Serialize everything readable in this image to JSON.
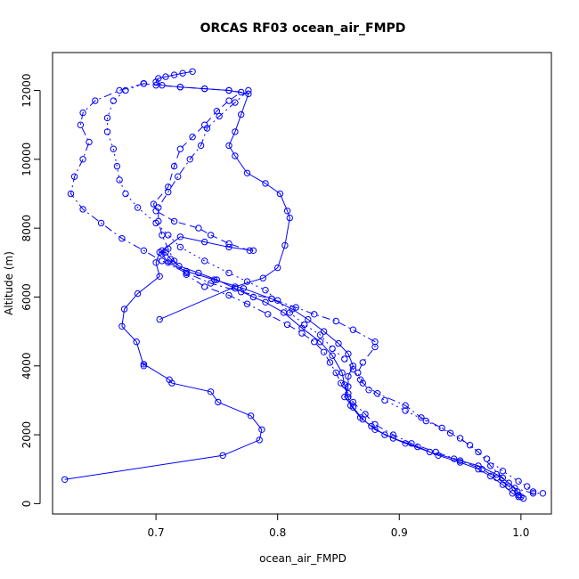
{
  "chart_data": {
    "type": "line",
    "title": "ORCAS RF03 ocean_air_FMPD",
    "xlabel": "ocean_air_FMPD",
    "ylabel": "Altitude (m)",
    "xlim": [
      0.615,
      1.025
    ],
    "ylim": [
      -300,
      13100
    ],
    "xticks": [
      0.7,
      0.8,
      0.9,
      1.0
    ],
    "xtick_labels": [
      "0.7",
      "0.8",
      "0.9",
      "1.0"
    ],
    "yticks": [
      0,
      2000,
      4000,
      6000,
      8000,
      10000,
      12000
    ],
    "ytick_labels": [
      "0",
      "2000",
      "4000",
      "6000",
      "8000",
      "10000",
      "12000"
    ],
    "grid": false,
    "legend": "none",
    "color": "#0000ff",
    "marker": "open-circle",
    "series": [
      {
        "line_style": "solid",
        "points": [
          [
            0.625,
            700
          ],
          [
            0.755,
            1400
          ],
          [
            0.785,
            1850
          ],
          [
            0.787,
            2150
          ],
          [
            0.778,
            2550
          ],
          [
            0.751,
            2950
          ],
          [
            0.745,
            3250
          ],
          [
            0.713,
            3500
          ],
          [
            0.711,
            3600
          ],
          [
            0.69,
            4050
          ],
          [
            0.69,
            4000
          ],
          [
            0.684,
            4700
          ],
          [
            0.672,
            5150
          ],
          [
            0.674,
            5650
          ],
          [
            0.685,
            6100
          ],
          [
            0.703,
            6600
          ],
          [
            0.7,
            7000
          ],
          [
            0.703,
            7300
          ],
          [
            0.708,
            7300
          ],
          [
            0.712,
            7100
          ],
          [
            0.719,
            6900
          ],
          [
            0.735,
            6700
          ],
          [
            0.75,
            6500
          ],
          [
            0.765,
            6250
          ],
          [
            0.78,
            6000
          ],
          [
            0.79,
            5850
          ],
          [
            0.805,
            5550
          ],
          [
            0.82,
            5100
          ],
          [
            0.835,
            4700
          ],
          [
            0.845,
            4300
          ],
          [
            0.853,
            3800
          ],
          [
            0.855,
            3450
          ],
          [
            0.858,
            3100
          ],
          [
            0.86,
            2850
          ],
          [
            0.868,
            2500
          ],
          [
            0.877,
            2250
          ],
          [
            0.888,
            2000
          ],
          [
            0.905,
            1750
          ],
          [
            0.925,
            1500
          ],
          [
            0.945,
            1300
          ],
          [
            0.965,
            1100
          ],
          [
            0.98,
            850
          ],
          [
            0.99,
            600
          ],
          [
            0.997,
            350
          ],
          [
            1.0,
            200
          ]
        ]
      },
      {
        "line_style": "solid",
        "points": [
          [
            0.703,
            5350
          ],
          [
            0.765,
            6300
          ],
          [
            0.788,
            6550
          ],
          [
            0.8,
            6850
          ],
          [
            0.806,
            7500
          ],
          [
            0.81,
            8300
          ],
          [
            0.808,
            8500
          ],
          [
            0.802,
            9000
          ],
          [
            0.79,
            9300
          ],
          [
            0.775,
            9600
          ],
          [
            0.765,
            10100
          ],
          [
            0.76,
            10400
          ],
          [
            0.765,
            10800
          ],
          [
            0.77,
            11300
          ],
          [
            0.776,
            11900
          ],
          [
            0.76,
            12000
          ],
          [
            0.74,
            12050
          ],
          [
            0.72,
            12100
          ],
          [
            0.705,
            12150
          ],
          [
            0.7,
            12250
          ],
          [
            0.702,
            12350
          ],
          [
            0.708,
            12400
          ],
          [
            0.715,
            12450
          ],
          [
            0.722,
            12500
          ],
          [
            0.73,
            12550
          ]
        ]
      },
      {
        "line_style": "dashed",
        "points": [
          [
            0.777,
            7350
          ],
          [
            0.76,
            7550
          ],
          [
            0.745,
            7800
          ],
          [
            0.735,
            8000
          ],
          [
            0.715,
            8200
          ],
          [
            0.7,
            8500
          ],
          [
            0.698,
            8700
          ],
          [
            0.71,
            9200
          ],
          [
            0.715,
            9800
          ],
          [
            0.72,
            10300
          ],
          [
            0.73,
            10650
          ],
          [
            0.74,
            11000
          ],
          [
            0.75,
            11400
          ],
          [
            0.76,
            11700
          ],
          [
            0.77,
            11950
          ],
          [
            0.76,
            12000
          ],
          [
            0.74,
            12050
          ],
          [
            0.72,
            12100
          ],
          [
            0.7,
            12150
          ],
          [
            0.69,
            12200
          ]
        ]
      },
      {
        "line_style": "dash-dot",
        "points": [
          [
            0.69,
            12200
          ],
          [
            0.67,
            12000
          ],
          [
            0.65,
            11700
          ],
          [
            0.64,
            11350
          ],
          [
            0.638,
            11000
          ],
          [
            0.645,
            10500
          ],
          [
            0.64,
            10000
          ],
          [
            0.633,
            9500
          ],
          [
            0.63,
            9000
          ],
          [
            0.64,
            8550
          ],
          [
            0.655,
            8150
          ],
          [
            0.672,
            7700
          ],
          [
            0.69,
            7350
          ],
          [
            0.705,
            7050
          ],
          [
            0.725,
            6700
          ],
          [
            0.745,
            6400
          ],
          [
            0.77,
            6150
          ],
          [
            0.795,
            5950
          ],
          [
            0.815,
            5700
          ],
          [
            0.83,
            5500
          ],
          [
            0.848,
            5300
          ],
          [
            0.862,
            5050
          ],
          [
            0.88,
            4700
          ],
          [
            0.88,
            4550
          ],
          [
            0.87,
            4100
          ],
          [
            0.866,
            3800
          ],
          [
            0.87,
            3500
          ],
          [
            0.882,
            3200
          ],
          [
            0.905,
            2850
          ],
          [
            0.918,
            2500
          ],
          [
            0.935,
            2200
          ],
          [
            0.95,
            1900
          ],
          [
            0.965,
            1500
          ],
          [
            0.975,
            1100
          ],
          [
            0.985,
            750
          ],
          [
            0.995,
            450
          ],
          [
            1.01,
            300
          ],
          [
            1.018,
            300
          ]
        ]
      },
      {
        "line_style": "dotted",
        "points": [
          [
            0.69,
            12200
          ],
          [
            0.675,
            12000
          ],
          [
            0.665,
            11700
          ],
          [
            0.66,
            11200
          ],
          [
            0.66,
            10800
          ],
          [
            0.665,
            10300
          ],
          [
            0.668,
            9800
          ],
          [
            0.67,
            9400
          ],
          [
            0.675,
            9000
          ],
          [
            0.685,
            8600
          ],
          [
            0.7,
            8150
          ],
          [
            0.71,
            7800
          ],
          [
            0.72,
            7450
          ],
          [
            0.74,
            7050
          ],
          [
            0.76,
            6700
          ],
          [
            0.775,
            6450
          ],
          [
            0.79,
            6200
          ],
          [
            0.8,
            5900
          ],
          [
            0.81,
            5550
          ],
          [
            0.822,
            5200
          ],
          [
            0.835,
            4900
          ],
          [
            0.845,
            4500
          ],
          [
            0.855,
            4200
          ],
          [
            0.862,
            3900
          ],
          [
            0.868,
            3600
          ],
          [
            0.875,
            3300
          ],
          [
            0.888,
            3000
          ],
          [
            0.905,
            2700
          ],
          [
            0.922,
            2400
          ],
          [
            0.942,
            2050
          ],
          [
            0.958,
            1700
          ],
          [
            0.972,
            1300
          ],
          [
            0.985,
            950
          ],
          [
            0.998,
            650
          ],
          [
            1.005,
            500
          ],
          [
            1.01,
            350
          ]
        ]
      },
      {
        "line_style": "dash-dot",
        "points": [
          [
            0.776,
            12000
          ],
          [
            0.765,
            11650
          ],
          [
            0.752,
            11250
          ],
          [
            0.742,
            10900
          ],
          [
            0.737,
            10400
          ],
          [
            0.728,
            10000
          ],
          [
            0.718,
            9500
          ],
          [
            0.71,
            9050
          ],
          [
            0.702,
            8600
          ],
          [
            0.702,
            8200
          ],
          [
            0.705,
            7800
          ],
          [
            0.71,
            7400
          ],
          [
            0.715,
            7050
          ],
          [
            0.725,
            6650
          ],
          [
            0.74,
            6300
          ],
          [
            0.76,
            6050
          ],
          [
            0.775,
            5800
          ],
          [
            0.792,
            5500
          ],
          [
            0.808,
            5200
          ],
          [
            0.82,
            4950
          ],
          [
            0.83,
            4700
          ],
          [
            0.838,
            4400
          ],
          [
            0.843,
            4100
          ],
          [
            0.848,
            3800
          ],
          [
            0.852,
            3500
          ],
          [
            0.858,
            3200
          ],
          [
            0.862,
            2950
          ],
          [
            0.872,
            2600
          ],
          [
            0.88,
            2300
          ],
          [
            0.895,
            2000
          ],
          [
            0.91,
            1750
          ],
          [
            0.93,
            1500
          ],
          [
            0.95,
            1250
          ],
          [
            0.968,
            1000
          ],
          [
            0.98,
            750
          ],
          [
            0.99,
            500
          ],
          [
            0.998,
            250
          ],
          [
            1.002,
            150
          ]
        ]
      },
      {
        "line_style": "solid",
        "points": [
          [
            0.78,
            7350
          ],
          [
            0.76,
            7450
          ],
          [
            0.74,
            7600
          ],
          [
            0.72,
            7750
          ],
          [
            0.705,
            7350
          ],
          [
            0.705,
            7250
          ],
          [
            0.71,
            7000
          ],
          [
            0.725,
            6750
          ],
          [
            0.748,
            6500
          ],
          [
            0.772,
            6250
          ],
          [
            0.795,
            5950
          ],
          [
            0.812,
            5650
          ],
          [
            0.825,
            5350
          ],
          [
            0.838,
            5000
          ],
          [
            0.85,
            4650
          ],
          [
            0.858,
            4350
          ],
          [
            0.862,
            4000
          ],
          [
            0.858,
            3700
          ],
          [
            0.858,
            3400
          ],
          [
            0.855,
            3100
          ],
          [
            0.862,
            2800
          ],
          [
            0.87,
            2450
          ],
          [
            0.88,
            2150
          ],
          [
            0.895,
            1900
          ],
          [
            0.915,
            1650
          ],
          [
            0.932,
            1400
          ],
          [
            0.95,
            1200
          ],
          [
            0.965,
            1000
          ],
          [
            0.975,
            800
          ],
          [
            0.985,
            550
          ],
          [
            0.993,
            300
          ],
          [
            0.998,
            200
          ]
        ]
      }
    ]
  }
}
